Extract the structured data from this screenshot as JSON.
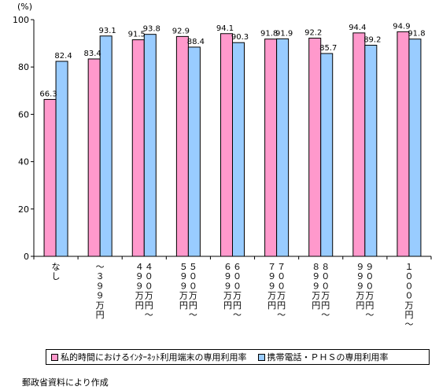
{
  "chart_data": {
    "type": "bar",
    "unit_label": "(%)",
    "ylim": [
      0,
      100
    ],
    "yticks": [
      0,
      20,
      40,
      60,
      80,
      100
    ],
    "categories": [
      "なし",
      "〜３９９万円",
      "４００万円〜４９９万円",
      "５００万円〜５９９万円",
      "６００万円〜６９９万円",
      "７００万円〜７９９万円",
      "８００万円〜８９９万円",
      "９００万円〜９９９万円",
      "１０００万円〜"
    ],
    "category_columns": [
      [
        [
          "な",
          "し"
        ]
      ],
      [
        [
          "〜",
          "３",
          "９",
          "９",
          "万",
          "円"
        ]
      ],
      [
        [
          "４",
          "９",
          "９",
          "万",
          "円"
        ],
        [
          "４",
          "０",
          "０",
          "万",
          "円",
          "〜"
        ]
      ],
      [
        [
          "５",
          "９",
          "９",
          "万",
          "円"
        ],
        [
          "５",
          "０",
          "０",
          "万",
          "円",
          "〜"
        ]
      ],
      [
        [
          "６",
          "９",
          "９",
          "万",
          "円"
        ],
        [
          "６",
          "０",
          "０",
          "万",
          "円",
          "〜"
        ]
      ],
      [
        [
          "７",
          "９",
          "９",
          "万",
          "円"
        ],
        [
          "７",
          "０",
          "０",
          "万",
          "円",
          "〜"
        ]
      ],
      [
        [
          "８",
          "９",
          "９",
          "万",
          "円"
        ],
        [
          "８",
          "０",
          "０",
          "万",
          "円",
          "〜"
        ]
      ],
      [
        [
          "９",
          "９",
          "９",
          "万",
          "円"
        ],
        [
          "９",
          "０",
          "０",
          "万",
          "円",
          "〜"
        ]
      ],
      [
        [
          "１",
          "０",
          "０",
          "０",
          "万",
          "円",
          "〜"
        ]
      ]
    ],
    "series": [
      {
        "name": "私的時間におけるｲﾝﾀｰﾈｯﾄ利用端末の専用利用率",
        "color": "#ff99cc",
        "values": [
          66.3,
          83.4,
          91.5,
          92.9,
          94.1,
          91.8,
          92.2,
          94.4,
          94.9
        ]
      },
      {
        "name": "携帯電話・ＰＨＳの専用利用率",
        "color": "#99ccff",
        "values": [
          82.4,
          93.1,
          93.8,
          88.4,
          90.3,
          91.9,
          85.7,
          89.2,
          91.8
        ]
      }
    ],
    "grid": false,
    "legend_position": "bottom"
  },
  "source_note": "郵政省資料により作成"
}
